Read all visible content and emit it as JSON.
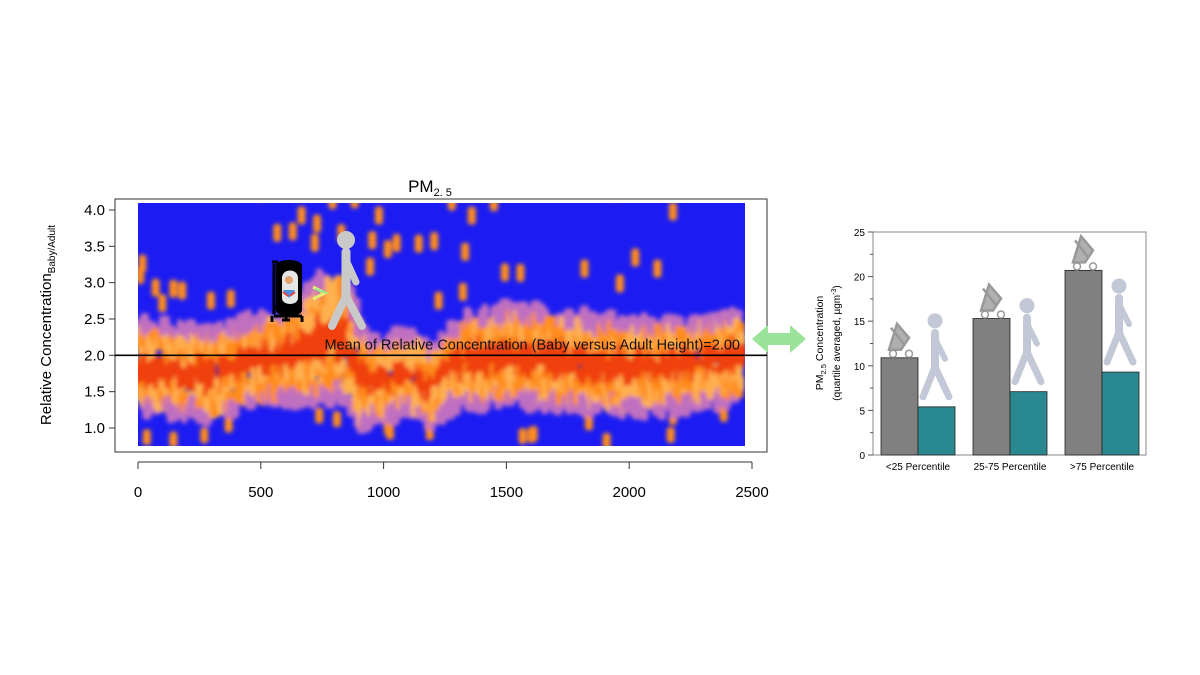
{
  "chart_data": [
    {
      "type": "heatmap",
      "title": "PM",
      "title_subscript": "2. 5",
      "ylabel": "Relative Concentration",
      "ylabel_subscript": "Baby/Adult",
      "xlabel": "",
      "xlim": [
        0,
        2500
      ],
      "ylim": [
        0.75,
        4.05
      ],
      "x_ticks": [
        "0",
        "500",
        "1000",
        "1500",
        "2000",
        "2500"
      ],
      "x_tick_values": [
        0,
        500,
        1000,
        1500,
        2000,
        2500
      ],
      "y_ticks": [
        "1.0",
        "1.5",
        "2.0",
        "2.5",
        "3.0",
        "3.5",
        "4.0"
      ],
      "y_tick_values": [
        1.0,
        1.5,
        2.0,
        2.5,
        3.0,
        3.5,
        4.0
      ],
      "reference_line": {
        "y": 2.0,
        "label": "Mean of Relative Concentration (Baby versus Adult Height)=2.00"
      },
      "background_color": "#1c1cf2",
      "density_colors": [
        "#f04010",
        "#ff8c1a",
        "#ffb050",
        "#c070c0"
      ],
      "band_center": [
        [
          0,
          1.85
        ],
        [
          150,
          1.8
        ],
        [
          300,
          1.75
        ],
        [
          450,
          1.9
        ],
        [
          600,
          2.0
        ],
        [
          700,
          2.15
        ],
        [
          800,
          2.3
        ],
        [
          850,
          2.2
        ],
        [
          900,
          1.7
        ],
        [
          1000,
          1.65
        ],
        [
          1100,
          1.8
        ],
        [
          1200,
          1.55
        ],
        [
          1300,
          1.9
        ],
        [
          1500,
          2.0
        ],
        [
          1700,
          1.95
        ],
        [
          1900,
          1.85
        ],
        [
          2100,
          1.85
        ],
        [
          2300,
          1.9
        ],
        [
          2460,
          2.0
        ]
      ],
      "band_halfwidth": [
        [
          0,
          0.6
        ],
        [
          300,
          0.6
        ],
        [
          600,
          0.6
        ],
        [
          750,
          0.9
        ],
        [
          850,
          0.9
        ],
        [
          950,
          0.55
        ],
        [
          1200,
          0.5
        ],
        [
          1400,
          0.65
        ],
        [
          1800,
          0.65
        ],
        [
          2200,
          0.6
        ],
        [
          2460,
          0.6
        ]
      ],
      "icons": [
        "baby-stroller-icon",
        "adult-pedestrian-icon"
      ]
    },
    {
      "type": "bar",
      "ylabel": "PM",
      "ylabel_subscript": "2.5",
      "ylabel_rest": " Concentration",
      "ylabel_line2": "(quartile averaged, µgm",
      "ylabel_line2_sup": "-3",
      "ylabel_line2_end": ")",
      "ylim": [
        0,
        25
      ],
      "y_ticks": [
        "0",
        "5",
        "10",
        "15",
        "20",
        "25"
      ],
      "y_tick_values": [
        0,
        5,
        10,
        15,
        20,
        25
      ],
      "categories": [
        "<25 Percentile",
        "25-75 Percentile",
        ">75 Percentile"
      ],
      "series": [
        {
          "icon": "stroller-icon",
          "color": "#808080",
          "values": [
            10.9,
            15.3,
            20.7
          ]
        },
        {
          "icon": "adult-pedestrian-icon",
          "color": "#2a8890",
          "values": [
            5.4,
            7.1,
            9.3
          ]
        }
      ]
    }
  ],
  "connector": {
    "icon": "double-arrow-icon",
    "color": "#9be39b"
  }
}
